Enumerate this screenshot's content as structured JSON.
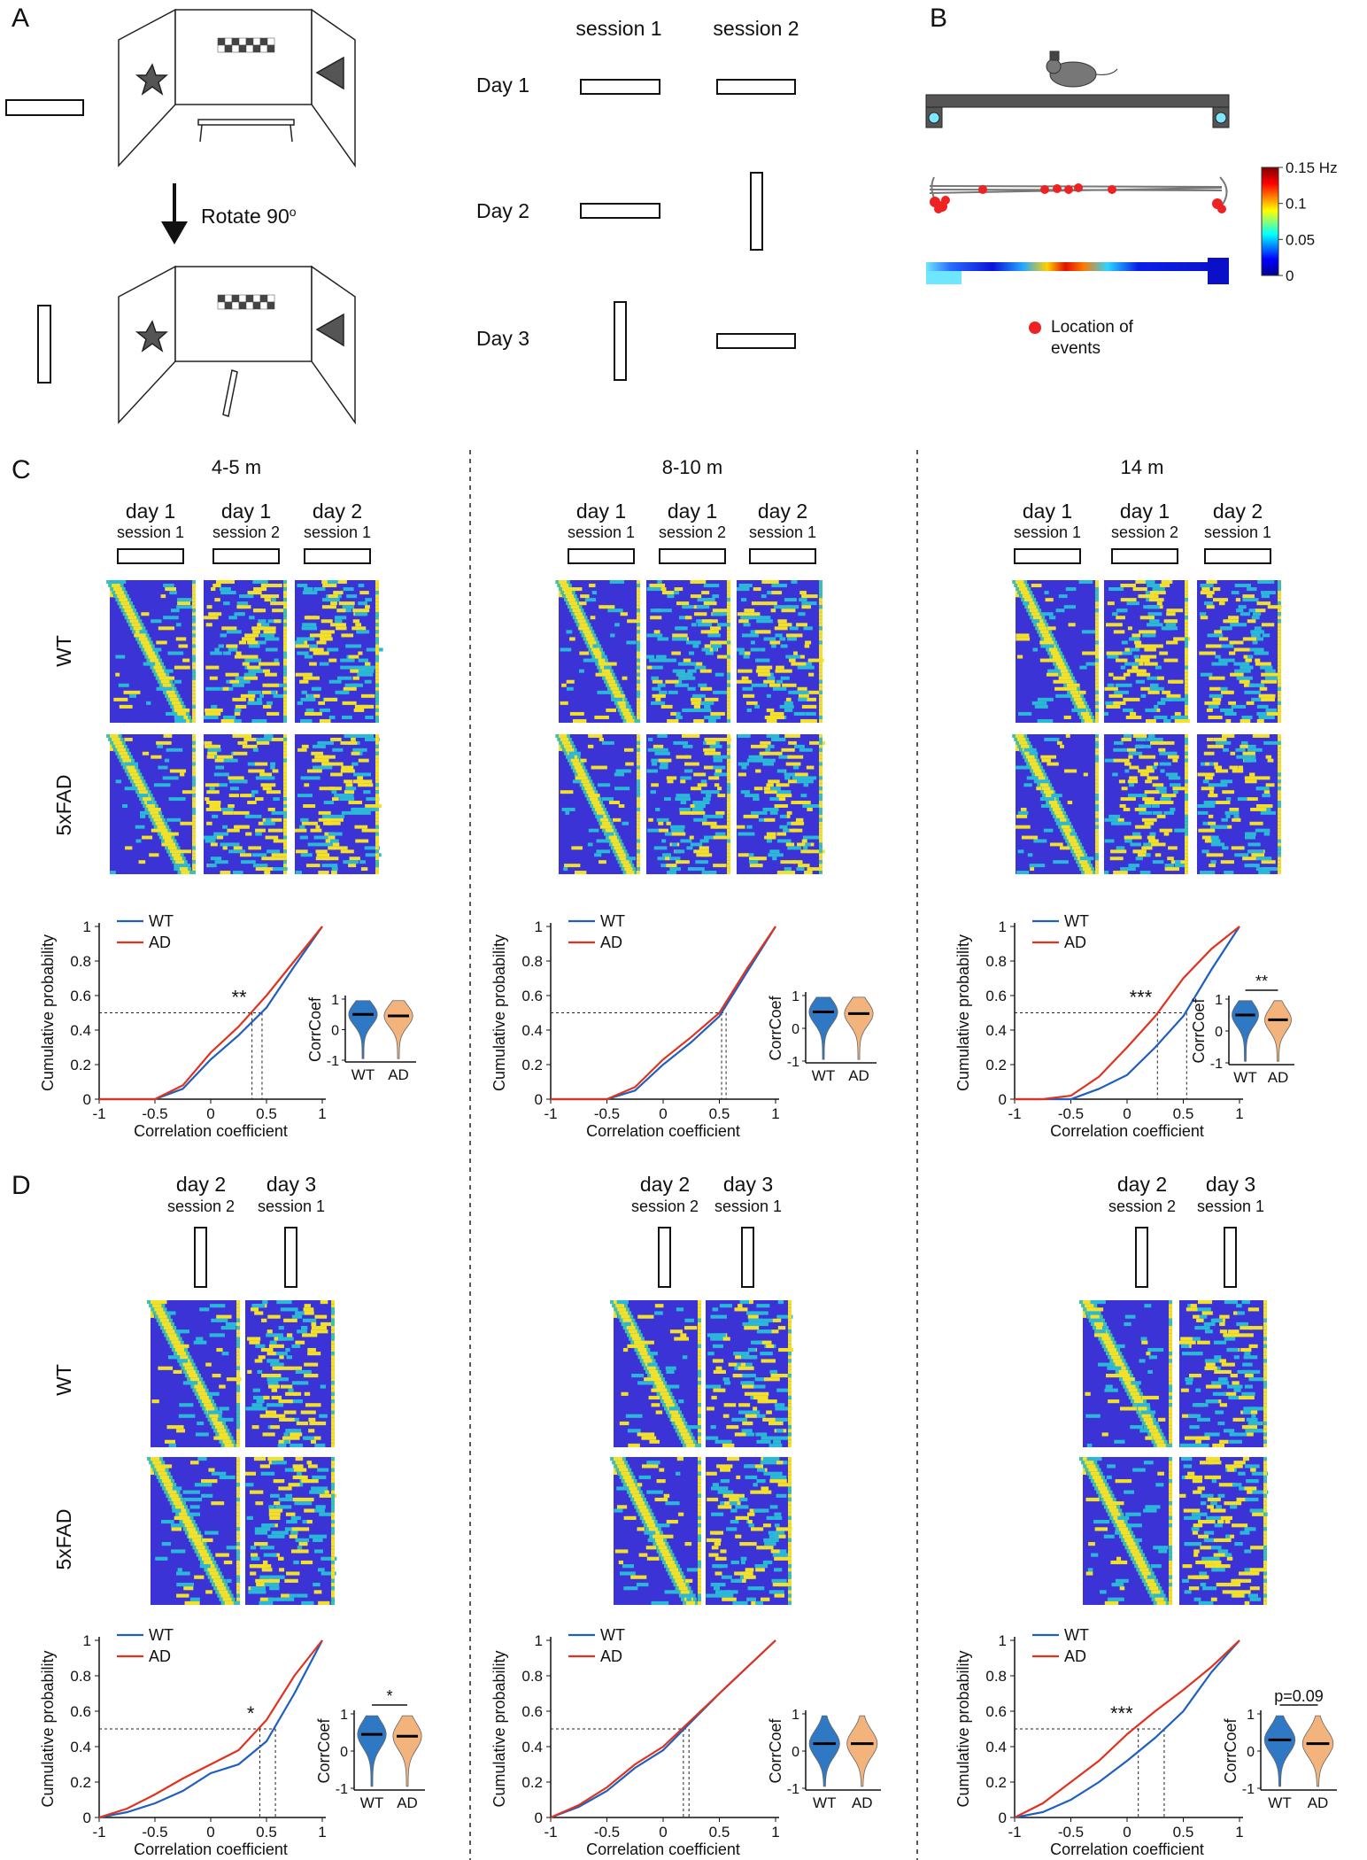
{
  "panel_labels": [
    "A",
    "B",
    "C",
    "D"
  ],
  "panel_a": {
    "rotate_text": "Rotate 90",
    "rotate_superscript": "o",
    "sessions": [
      "session 1",
      "session 2"
    ],
    "days": [
      "Day 1",
      "Day 2",
      "Day 3"
    ]
  },
  "panel_b": {
    "colorbar": {
      "ylim": [
        0,
        0.15
      ],
      "yticks": [
        0,
        0.05,
        0.1,
        {
          "value": 0.15,
          "label": "0.15 Hz"
        }
      ]
    },
    "legend": "Location of events"
  },
  "ages": [
    "4-5 m",
    "8-10 m",
    "14 m"
  ],
  "panel_c": {
    "headers": [
      {
        "day": "day 1",
        "session": "session 1"
      },
      {
        "day": "day 1",
        "session": "session 2"
      },
      {
        "day": "day 2",
        "session": "session 1"
      }
    ],
    "groups": [
      "WT",
      "5xFAD"
    ]
  },
  "panel_d": {
    "headers": [
      {
        "day": "day 2",
        "session": "session 2"
      },
      {
        "day": "day 3",
        "session": "session 1"
      }
    ],
    "groups": [
      "WT",
      "5xFAD"
    ]
  },
  "chart_data": [
    {
      "type": "line",
      "x": [
        -1,
        -0.75,
        -0.5,
        -0.25,
        0,
        0.25,
        0.5,
        0.75,
        1
      ],
      "series": [
        {
          "name": "WT",
          "color": "#1f5fbf",
          "values": [
            0,
            0,
            0,
            0.06,
            0.23,
            0.37,
            0.53,
            0.77,
            1
          ]
        },
        {
          "name": "AD",
          "color": "#e0321e",
          "values": [
            0,
            0,
            0,
            0.08,
            0.27,
            0.42,
            0.6,
            0.8,
            1
          ]
        }
      ],
      "xlim": [
        -1,
        1
      ],
      "xticks": [
        -1,
        -0.5,
        0,
        0.5,
        1
      ],
      "ylim": [
        0,
        1
      ],
      "yticks": [
        0,
        0.2,
        0.4,
        0.6,
        0.8,
        1
      ],
      "xlabel": "Correlation coefficient",
      "ylabel": "Cumulative probability",
      "reference_y": 0.5,
      "medians": [
        0.46,
        0.37
      ],
      "significance": "**",
      "inset": {
        "type": "violin",
        "ylabel": "CorrCoef",
        "categories": [
          "WT",
          "AD"
        ],
        "colors": [
          "#2f78c4",
          "#f2b37c"
        ],
        "medians": [
          0.5,
          0.45
        ],
        "ylim": [
          -1,
          1
        ],
        "yticks": [
          -1,
          0,
          1
        ]
      }
    },
    {
      "type": "line",
      "x": [
        -1,
        -0.75,
        -0.5,
        -0.25,
        0,
        0.25,
        0.5,
        0.75,
        1
      ],
      "series": [
        {
          "name": "WT",
          "color": "#1f5fbf",
          "values": [
            0,
            0,
            0,
            0.05,
            0.2,
            0.33,
            0.48,
            0.74,
            1
          ]
        },
        {
          "name": "AD",
          "color": "#e0321e",
          "values": [
            0,
            0,
            0,
            0.07,
            0.23,
            0.36,
            0.5,
            0.76,
            1
          ]
        }
      ],
      "xlim": [
        -1,
        1
      ],
      "xticks": [
        -1,
        -0.5,
        0,
        0.5,
        1
      ],
      "ylim": [
        0,
        1
      ],
      "yticks": [
        0,
        0.2,
        0.4,
        0.6,
        0.8,
        1
      ],
      "xlabel": "Correlation coefficient",
      "ylabel": "Cumulative probability",
      "reference_y": 0.5,
      "medians": [
        0.56,
        0.52
      ],
      "inset": {
        "type": "violin",
        "ylabel": "CorrCoef",
        "categories": [
          "WT",
          "AD"
        ],
        "colors": [
          "#2f78c4",
          "#f2b37c"
        ],
        "medians": [
          0.5,
          0.45
        ],
        "ylim": [
          -1,
          1
        ],
        "yticks": [
          -1,
          0,
          1
        ]
      }
    },
    {
      "type": "line",
      "x": [
        -1,
        -0.75,
        -0.5,
        -0.25,
        0,
        0.25,
        0.5,
        0.75,
        1
      ],
      "series": [
        {
          "name": "WT",
          "color": "#1f5fbf",
          "values": [
            0,
            0,
            0,
            0.06,
            0.14,
            0.3,
            0.48,
            0.75,
            1
          ]
        },
        {
          "name": "AD",
          "color": "#e0321e",
          "values": [
            0,
            0,
            0.02,
            0.13,
            0.3,
            0.48,
            0.7,
            0.87,
            1
          ]
        }
      ],
      "xlim": [
        -1,
        1
      ],
      "xticks": [
        -1,
        -0.5,
        0,
        0.5,
        1
      ],
      "ylim": [
        0,
        1
      ],
      "yticks": [
        0,
        0.2,
        0.4,
        0.6,
        0.8,
        1
      ],
      "xlabel": "Correlation coefficient",
      "ylabel": "Cumulative probability",
      "reference_y": 0.5,
      "medians": [
        0.53,
        0.27
      ],
      "significance": "***",
      "inset": {
        "type": "violin",
        "ylabel": "CorrCoef",
        "categories": [
          "WT",
          "AD"
        ],
        "colors": [
          "#2f78c4",
          "#f2b37c"
        ],
        "medians": [
          0.5,
          0.35
        ],
        "ylim": [
          -1,
          1
        ],
        "yticks": [
          -1,
          0,
          1
        ],
        "significance": "**"
      }
    },
    {
      "type": "line",
      "x": [
        -1,
        -0.75,
        -0.5,
        -0.25,
        0,
        0.25,
        0.5,
        0.75,
        1
      ],
      "series": [
        {
          "name": "WT",
          "color": "#1f5fbf",
          "values": [
            0,
            0.03,
            0.08,
            0.15,
            0.25,
            0.3,
            0.43,
            0.7,
            1
          ]
        },
        {
          "name": "AD",
          "color": "#e0321e",
          "values": [
            0,
            0.05,
            0.13,
            0.22,
            0.3,
            0.38,
            0.55,
            0.8,
            1
          ]
        }
      ],
      "xlim": [
        -1,
        1
      ],
      "xticks": [
        -1,
        -0.5,
        0,
        0.5,
        1
      ],
      "ylim": [
        0,
        1
      ],
      "yticks": [
        0,
        0.2,
        0.4,
        0.6,
        0.8,
        1
      ],
      "xlabel": "Correlation coefficient",
      "ylabel": "Cumulative probability",
      "reference_y": 0.5,
      "medians": [
        0.58,
        0.44
      ],
      "significance": "*",
      "inset": {
        "type": "violin",
        "ylabel": "CorrCoef",
        "categories": [
          "WT",
          "AD"
        ],
        "colors": [
          "#2f78c4",
          "#f2b37c"
        ],
        "medians": [
          0.45,
          0.4
        ],
        "ylim": [
          -1,
          1
        ],
        "yticks": [
          -1,
          0,
          1
        ],
        "significance": "*"
      }
    },
    {
      "type": "line",
      "x": [
        -1,
        -0.75,
        -0.5,
        -0.25,
        0,
        0.25,
        0.5,
        0.75,
        1
      ],
      "series": [
        {
          "name": "WT",
          "color": "#1f5fbf",
          "values": [
            0,
            0.06,
            0.15,
            0.28,
            0.38,
            0.54,
            0.7,
            0.85,
            1
          ]
        },
        {
          "name": "AD",
          "color": "#e0321e",
          "values": [
            0,
            0.07,
            0.17,
            0.3,
            0.4,
            0.55,
            0.7,
            0.85,
            1
          ]
        }
      ],
      "xlim": [
        -1,
        1
      ],
      "xticks": [
        -1,
        -0.5,
        0,
        0.5,
        1
      ],
      "ylim": [
        0,
        1
      ],
      "yticks": [
        0,
        0.2,
        0.4,
        0.6,
        0.8,
        1
      ],
      "xlabel": "Correlation coefficient",
      "ylabel": "Cumulative probability",
      "reference_y": 0.5,
      "medians": [
        0.23,
        0.18
      ],
      "inset": {
        "type": "violin",
        "ylabel": "CorrCoef",
        "categories": [
          "WT",
          "AD"
        ],
        "colors": [
          "#2f78c4",
          "#f2b37c"
        ],
        "medians": [
          0.2,
          0.2
        ],
        "ylim": [
          -1,
          1
        ],
        "yticks": [
          -1,
          0,
          1
        ]
      }
    },
    {
      "type": "line",
      "x": [
        -1,
        -0.75,
        -0.5,
        -0.25,
        0,
        0.25,
        0.5,
        0.75,
        1
      ],
      "series": [
        {
          "name": "WT",
          "color": "#1f5fbf",
          "values": [
            0,
            0.03,
            0.1,
            0.2,
            0.32,
            0.45,
            0.6,
            0.82,
            1
          ]
        },
        {
          "name": "AD",
          "color": "#e0321e",
          "values": [
            0,
            0.08,
            0.2,
            0.32,
            0.47,
            0.6,
            0.72,
            0.85,
            1
          ]
        }
      ],
      "xlim": [
        -1,
        1
      ],
      "xticks": [
        -1,
        -0.5,
        0,
        0.5,
        1
      ],
      "ylim": [
        0,
        1
      ],
      "yticks": [
        0,
        0.2,
        0.4,
        0.6,
        0.8,
        1
      ],
      "xlabel": "Correlation coefficient",
      "ylabel": "Cumulative probability",
      "reference_y": 0.5,
      "medians": [
        0.33,
        0.1
      ],
      "significance": "***",
      "inset": {
        "type": "violin",
        "ylabel": "CorrCoef",
        "categories": [
          "WT",
          "AD"
        ],
        "colors": [
          "#2f78c4",
          "#f2b37c"
        ],
        "medians": [
          0.3,
          0.2
        ],
        "ylim": [
          -1,
          1
        ],
        "yticks": [
          -1,
          0,
          1
        ],
        "significance": "p=0.09"
      }
    }
  ]
}
